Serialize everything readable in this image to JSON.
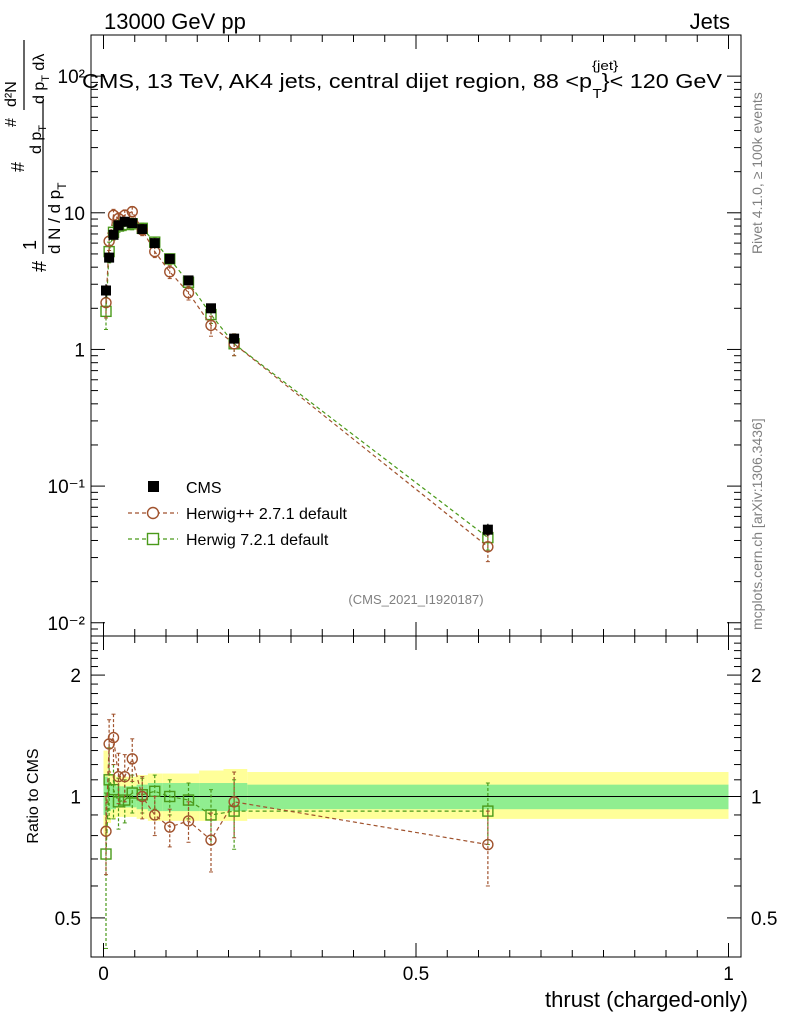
{
  "header": {
    "energy_label": "13000 GeV pp",
    "category_label": "Jets",
    "rivet_label": "Rivet 4.1.0, ≥ 100k events",
    "mcplots_label": "mcplots.cern.ch [arXiv:1306.3436]",
    "analysis_id": "(CMS_2021_I1920187)"
  },
  "chart_data": [
    {
      "type": "scatter",
      "scale": "log",
      "title": "CMS, 13 TeV, AK4 jets, central dijet region, 88 <p_T^{jet}< 120 GeV",
      "ylabel": "1/(dN/dp_T) d²N/(dp_T dλ)",
      "ylim": [
        0.008,
        200
      ],
      "xlim": [
        -0.02,
        1.02
      ],
      "y_ticks": [
        {
          "value": 0.01,
          "label": "10⁻²"
        },
        {
          "value": 0.1,
          "label": "10⁻¹"
        },
        {
          "value": 1,
          "label": "1"
        },
        {
          "value": 10,
          "label": "10"
        },
        {
          "value": 100,
          "label": "10²"
        }
      ],
      "legend": {
        "position": "bottom-left",
        "entries": [
          "CMS",
          "Herwig++ 2.7.1 default",
          "Herwig 7.2.1 default"
        ]
      },
      "series": [
        {
          "name": "CMS",
          "color": "#000000",
          "x": [
            0.004,
            0.009,
            0.016,
            0.024,
            0.034,
            0.046,
            0.062,
            0.082,
            0.106,
            0.136,
            0.172,
            0.209,
            0.615
          ],
          "values": [
            2.7,
            4.7,
            6.9,
            8.1,
            8.6,
            8.4,
            7.6,
            6.0,
            4.6,
            3.2,
            2.0,
            1.2,
            0.048
          ],
          "errors": [
            0.3,
            0.4,
            0.4,
            0.4,
            0.4,
            0.4,
            0.35,
            0.3,
            0.25,
            0.2,
            0.12,
            0.1,
            0.005
          ]
        },
        {
          "name": "Herwig++ 2.7.1 default",
          "color": "#a0522d",
          "x": [
            0.004,
            0.009,
            0.016,
            0.024,
            0.034,
            0.046,
            0.062,
            0.082,
            0.106,
            0.136,
            0.172,
            0.209,
            0.615
          ],
          "values": [
            2.2,
            6.2,
            9.6,
            9.1,
            9.6,
            10.2,
            7.5,
            5.2,
            3.7,
            2.6,
            1.5,
            1.1,
            0.036
          ],
          "errors": [
            0.5,
            0.9,
            1.0,
            0.9,
            0.9,
            0.9,
            0.7,
            0.5,
            0.4,
            0.3,
            0.25,
            0.2,
            0.008
          ]
        },
        {
          "name": "Herwig 7.2.1 default",
          "color": "#4a9a1a",
          "x": [
            0.004,
            0.009,
            0.016,
            0.024,
            0.034,
            0.046,
            0.062,
            0.082,
            0.106,
            0.136,
            0.172,
            0.209,
            0.615
          ],
          "values": [
            1.9,
            5.2,
            7.2,
            8.0,
            8.2,
            8.3,
            7.7,
            6.1,
            4.6,
            3.1,
            1.8,
            1.1,
            0.042
          ],
          "errors": [
            0.5,
            0.9,
            0.9,
            0.8,
            0.8,
            0.8,
            0.7,
            0.5,
            0.4,
            0.3,
            0.25,
            0.2,
            0.008
          ]
        }
      ]
    },
    {
      "type": "scatter",
      "scale": "log",
      "xlabel": "thrust (charged-only)",
      "ylabel": "Ratio to CMS",
      "ylim": [
        0.4,
        2.5
      ],
      "xlim": [
        -0.02,
        1.02
      ],
      "x_ticks": [
        {
          "value": 0,
          "label": "0"
        },
        {
          "value": 0.5,
          "label": "0.5"
        },
        {
          "value": 1,
          "label": "1"
        }
      ],
      "y_ticks": [
        {
          "value": 0.5,
          "label": "0.5"
        },
        {
          "value": 1,
          "label": "1"
        },
        {
          "value": 2,
          "label": "2"
        }
      ],
      "bands": [
        {
          "name": "inner",
          "color": "#90ee90",
          "edges": [
            0,
            0.007,
            0.012,
            0.02,
            0.029,
            0.04,
            0.053,
            0.071,
            0.094,
            0.12,
            0.153,
            0.192,
            0.23,
            1.0
          ],
          "lo": [
            0.9,
            0.92,
            0.93,
            0.94,
            0.94,
            0.94,
            0.93,
            0.92,
            0.92,
            0.92,
            0.92,
            0.92,
            0.93
          ],
          "hi": [
            1.12,
            1.08,
            1.07,
            1.06,
            1.06,
            1.06,
            1.07,
            1.08,
            1.08,
            1.08,
            1.08,
            1.08,
            1.07
          ]
        },
        {
          "name": "outer",
          "color": "#ffff99",
          "edges": [
            0,
            0.007,
            0.012,
            0.02,
            0.029,
            0.04,
            0.053,
            0.071,
            0.094,
            0.12,
            0.153,
            0.192,
            0.23,
            1.0
          ],
          "lo": [
            0.8,
            0.86,
            0.88,
            0.89,
            0.89,
            0.89,
            0.88,
            0.87,
            0.87,
            0.87,
            0.87,
            0.87,
            0.88
          ],
          "hi": [
            1.3,
            1.16,
            1.13,
            1.12,
            1.12,
            1.12,
            1.13,
            1.14,
            1.14,
            1.14,
            1.16,
            1.17,
            1.15
          ]
        }
      ],
      "series": [
        {
          "name": "Herwig++ 2.7.1 default",
          "color": "#a0522d",
          "x": [
            0.004,
            0.009,
            0.016,
            0.024,
            0.034,
            0.046,
            0.062,
            0.082,
            0.106,
            0.136,
            0.172,
            0.209,
            0.615
          ],
          "values": [
            0.82,
            1.35,
            1.4,
            1.12,
            1.12,
            1.24,
            1.0,
            0.9,
            0.84,
            0.87,
            0.78,
            0.97,
            0.76
          ],
          "errors": [
            0.18,
            0.2,
            0.2,
            0.16,
            0.15,
            0.15,
            0.12,
            0.1,
            0.09,
            0.1,
            0.13,
            0.18,
            0.16
          ]
        },
        {
          "name": "Herwig 7.2.1 default",
          "color": "#4a9a1a",
          "x": [
            0.004,
            0.009,
            0.016,
            0.024,
            0.034,
            0.046,
            0.062,
            0.082,
            0.106,
            0.136,
            0.172,
            0.209,
            0.615
          ],
          "values": [
            0.72,
            1.1,
            1.04,
            0.97,
            0.98,
            1.02,
            1.01,
            1.03,
            1.0,
            0.98,
            0.9,
            0.92,
            0.92
          ],
          "errors": [
            0.3,
            0.22,
            0.16,
            0.14,
            0.12,
            0.11,
            0.1,
            0.1,
            0.1,
            0.1,
            0.14,
            0.18,
            0.16
          ]
        }
      ]
    }
  ]
}
